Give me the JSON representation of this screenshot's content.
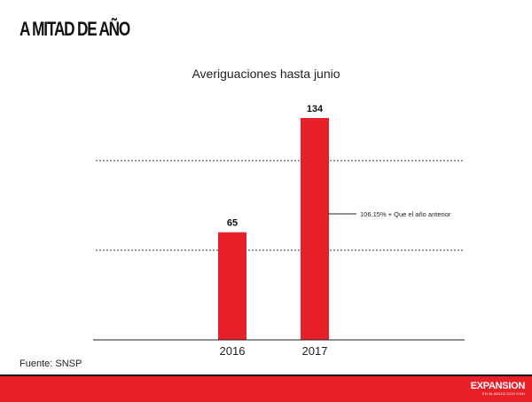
{
  "header": {
    "headline": "A MITAD DE AÑO"
  },
  "source": "Fuente: SNSP",
  "logo": {
    "main": "EXPANSION",
    "sub": "EN ALIANZA CON CNN"
  },
  "colors": {
    "bar": "#e8202a",
    "footer": "#e8202a",
    "text": "#111111"
  },
  "chart_data": {
    "type": "bar",
    "title": "Averiguaciones hasta junio",
    "xlabel": "",
    "ylabel": "",
    "categories": [
      "2016",
      "2017"
    ],
    "values": [
      65,
      134
    ],
    "ylim": [
      0,
      134
    ],
    "grid": "dashed horizontal lines",
    "annotations": [
      {
        "text": "106.15% + Que el año anterior",
        "target": "2017"
      }
    ]
  }
}
